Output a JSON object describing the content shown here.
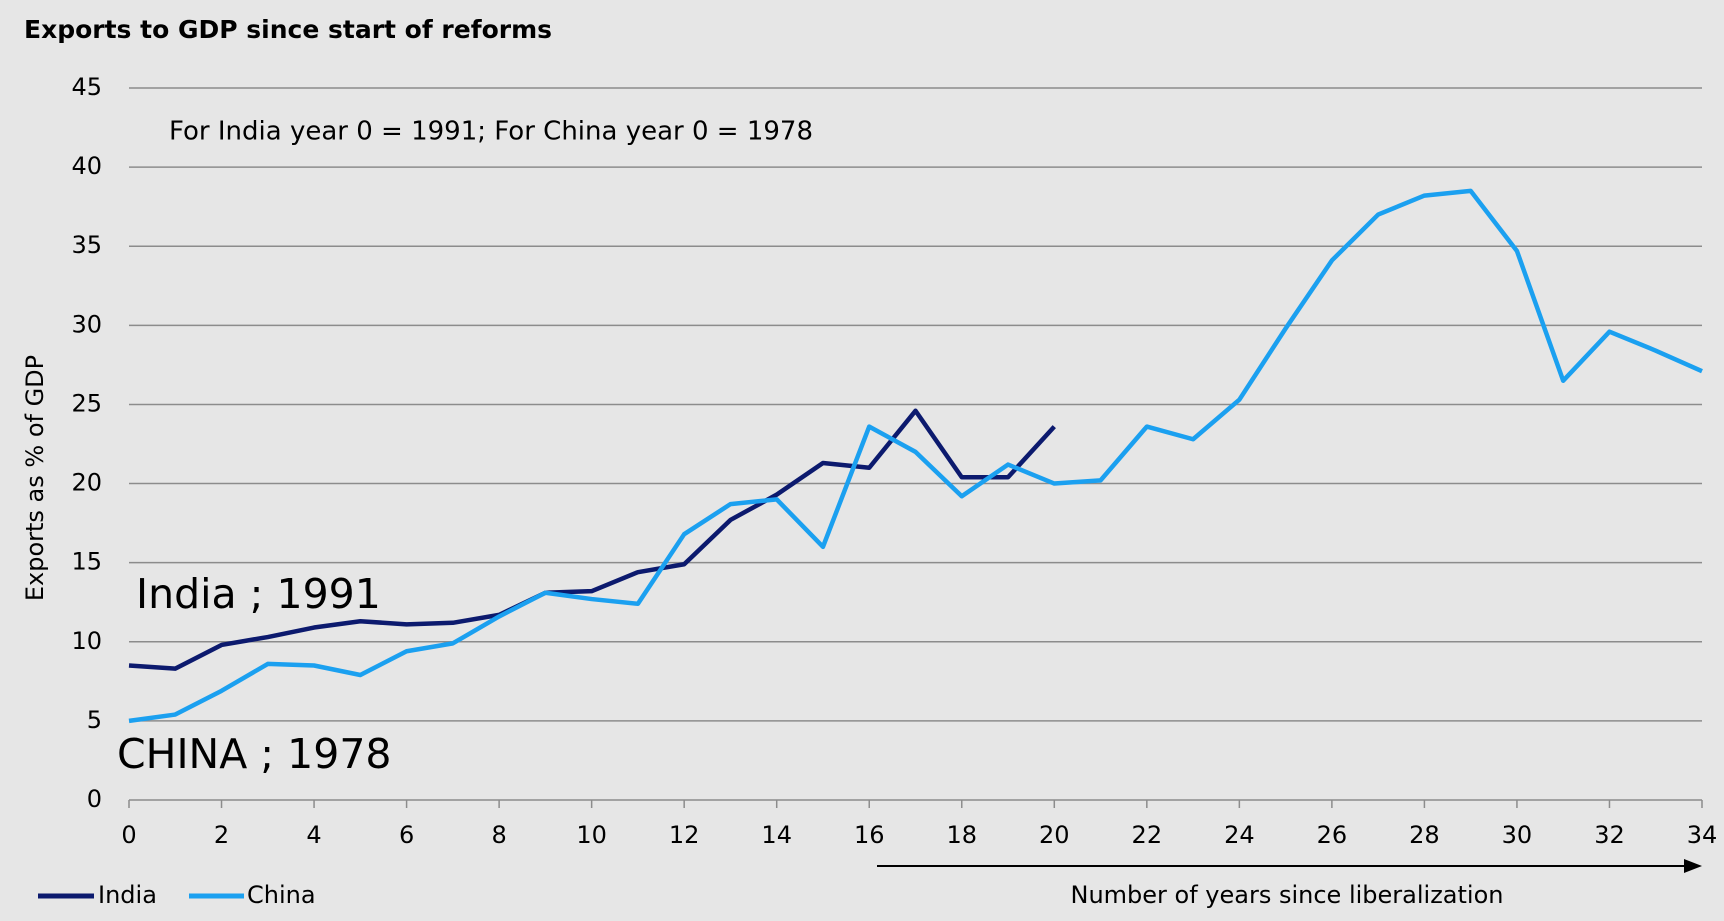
{
  "chart_data": {
    "type": "line",
    "title": "Exports to GDP since start of reforms",
    "ylabel": "Exports as % of GDP",
    "xlabel": "Number of years since liberalization",
    "annotations": [
      "For India year 0 = 1991; For China year 0 = 1978",
      "India ; 1991",
      "CHINA ; 1978"
    ],
    "x": [
      0,
      1,
      2,
      3,
      4,
      5,
      6,
      7,
      8,
      9,
      10,
      11,
      12,
      13,
      14,
      15,
      16,
      17,
      18,
      19,
      20,
      21,
      22,
      23,
      24,
      25,
      26,
      27,
      28,
      29,
      30,
      31,
      32,
      33,
      34
    ],
    "series": [
      {
        "name": "India",
        "color": "#0c1a6e",
        "values": [
          8.5,
          8.3,
          9.8,
          10.3,
          10.9,
          11.3,
          11.1,
          11.2,
          11.7,
          13.1,
          13.2,
          14.4,
          14.9,
          17.7,
          19.3,
          21.3,
          21.0,
          24.6,
          20.4,
          20.4,
          23.6,
          null,
          null,
          null,
          null,
          null,
          null,
          null,
          null,
          null,
          null,
          null,
          null,
          null,
          null
        ]
      },
      {
        "name": "China",
        "color": "#1ba0f0",
        "values": [
          5.0,
          5.4,
          6.9,
          8.6,
          8.5,
          7.9,
          9.4,
          9.9,
          11.6,
          13.1,
          12.7,
          12.4,
          16.8,
          18.7,
          19.0,
          16.0,
          23.6,
          22.0,
          19.2,
          21.2,
          20.0,
          20.2,
          23.6,
          22.8,
          25.3,
          29.8,
          34.1,
          37.0,
          38.2,
          38.5,
          34.7,
          26.5,
          29.6,
          28.4,
          27.1
        ]
      }
    ],
    "xlim": [
      0,
      34
    ],
    "xticks": [
      0,
      2,
      4,
      6,
      8,
      10,
      12,
      14,
      16,
      18,
      20,
      22,
      24,
      26,
      28,
      30,
      32,
      34
    ],
    "ylim": [
      0,
      45
    ],
    "yticks": [
      0,
      5,
      10,
      15,
      20,
      25,
      30,
      35,
      40,
      45
    ],
    "grid": true,
    "legend": "bottom-left"
  }
}
